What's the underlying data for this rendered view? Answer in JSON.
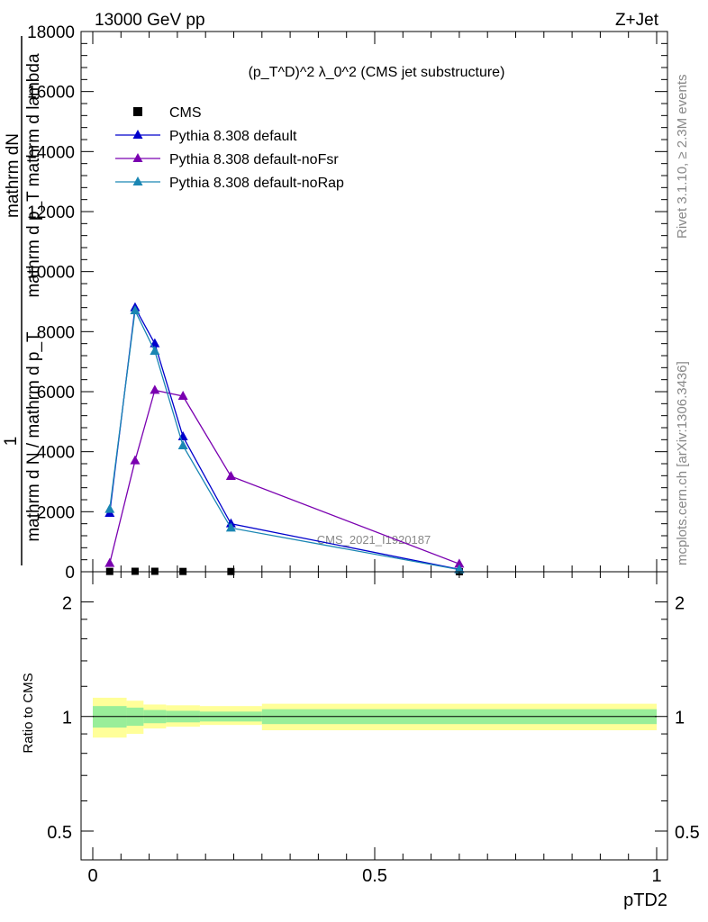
{
  "header": {
    "energy_label": "13000 GeV pp",
    "process_label": "Z+Jet",
    "side_label_top": "Rivet 3.1.10, ≥ 2.3M events",
    "side_label_bottom": "mcplots.cern.ch [arXiv:1306.3436]",
    "watermark": "CMS_2021_I1920187"
  },
  "chart_data": [
    {
      "type": "line",
      "title": "(p_T^D)^2 λ_0^2 (CMS jet substructure)",
      "ylabel_top": "mathrm dN",
      "ylabel_top2": "mathrm d p_T mathrm d lambda",
      "ylabel_one": "1",
      "ylabel_bottom": "mathrm d N / mathrm d p_T",
      "xlim": [
        0,
        1
      ],
      "ylim": [
        0,
        18000
      ],
      "yticks": [
        0,
        2000,
        4000,
        6000,
        8000,
        10000,
        12000,
        14000,
        16000,
        18000
      ],
      "ytick_labels": [
        "0",
        "2000",
        "4000",
        "6000",
        "8000",
        "10000",
        "12000",
        "14000",
        "16000",
        "18000"
      ],
      "legend_placement": "top-left",
      "series": [
        {
          "name": "CMS",
          "color": "#000000",
          "marker": "square",
          "x": [
            0.03,
            0.075,
            0.11,
            0.16,
            0.245,
            0.65
          ],
          "y": [
            10,
            15,
            15,
            10,
            8,
            1
          ]
        },
        {
          "name": "Pythia 8.308 default",
          "color": "#0000cc",
          "marker": "triangle",
          "x": [
            0.03,
            0.075,
            0.11,
            0.16,
            0.245,
            0.65
          ],
          "y": [
            1950,
            8800,
            7600,
            4500,
            1600,
            80
          ]
        },
        {
          "name": "Pythia 8.308 default-noFsr",
          "color": "#7a00b0",
          "marker": "triangle",
          "x": [
            0.03,
            0.075,
            0.11,
            0.16,
            0.245,
            0.65
          ],
          "y": [
            280,
            3700,
            6050,
            5850,
            3180,
            260
          ]
        },
        {
          "name": "Pythia 8.308 default-noRap",
          "color": "#1a86b3",
          "marker": "triangle",
          "x": [
            0.03,
            0.075,
            0.11,
            0.16,
            0.245,
            0.65
          ],
          "y": [
            2080,
            8700,
            7350,
            4200,
            1460,
            70
          ]
        }
      ]
    },
    {
      "type": "area",
      "ylabel": "Ratio to CMS",
      "xlabel": "pTD2",
      "xlim": [
        0,
        1
      ],
      "ylim": [
        0.42,
        2.4
      ],
      "log_y": true,
      "xticks": [
        0,
        0.5,
        1
      ],
      "xtick_labels": [
        "0",
        "0.5",
        "1"
      ],
      "yticks": [
        0.5,
        1,
        2
      ],
      "ytick_labels": [
        "0.5",
        "1",
        "2"
      ],
      "reference_line": 1,
      "bins": [
        0,
        0.06,
        0.09,
        0.13,
        0.19,
        0.3,
        1.0
      ],
      "band_outer": {
        "color": "#ffff99",
        "low": [
          0.88,
          0.9,
          0.93,
          0.94,
          0.95,
          0.92
        ],
        "high": [
          1.12,
          1.1,
          1.075,
          1.07,
          1.065,
          1.08
        ]
      },
      "band_inner": {
        "color": "#99ee99",
        "low": [
          0.935,
          0.945,
          0.96,
          0.965,
          0.97,
          0.955
        ],
        "high": [
          1.065,
          1.055,
          1.04,
          1.035,
          1.03,
          1.045
        ]
      }
    }
  ]
}
